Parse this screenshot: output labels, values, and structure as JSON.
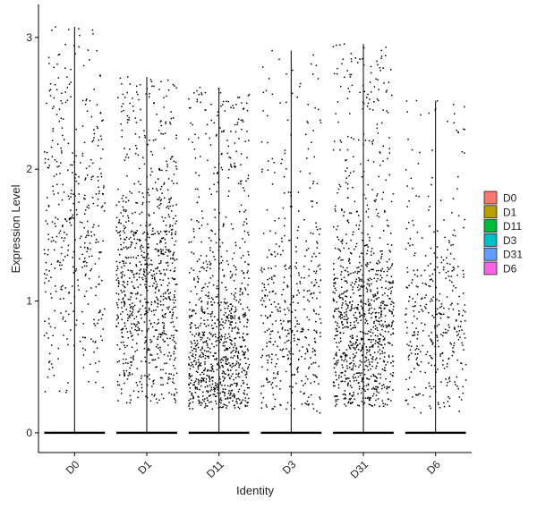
{
  "chart_data": {
    "type": "scatter",
    "subtype": "violin-jitter",
    "title": "",
    "xlabel": "Identity",
    "ylabel": "Expression Level",
    "ylim": [
      -0.15,
      3.25
    ],
    "yticks": [
      0,
      1,
      2,
      3
    ],
    "categories": [
      "D0",
      "D1",
      "D11",
      "D3",
      "D31",
      "D6"
    ],
    "legend": {
      "placement": "right",
      "entries": [
        {
          "name": "D0",
          "color": "#F8766D"
        },
        {
          "name": "D1",
          "color": "#B79F00"
        },
        {
          "name": "D11",
          "color": "#00BA38"
        },
        {
          "name": "D3",
          "color": "#00BFC4"
        },
        {
          "name": "D31",
          "color": "#619CFF"
        },
        {
          "name": "D6",
          "color": "#F564E3"
        }
      ]
    },
    "groups": [
      {
        "category": "D0",
        "max": 3.08,
        "nonzero_points": 420,
        "zero_fraction": "high",
        "center": 1.5,
        "spread": 0.9,
        "min_nonzero": 0.3
      },
      {
        "category": "D1",
        "max": 2.7,
        "nonzero_points": 900,
        "zero_fraction": "high",
        "center": 1.05,
        "spread": 0.7,
        "min_nonzero": 0.22
      },
      {
        "category": "D11",
        "max": 2.62,
        "nonzero_points": 950,
        "zero_fraction": "high",
        "center": 0.55,
        "spread": 0.55,
        "min_nonzero": 0.18
      },
      {
        "category": "D3",
        "max": 2.9,
        "nonzero_points": 460,
        "zero_fraction": "high",
        "center": 0.8,
        "spread": 0.6,
        "min_nonzero": 0.15
      },
      {
        "category": "D31",
        "max": 2.95,
        "nonzero_points": 1000,
        "zero_fraction": "high",
        "center": 0.75,
        "spread": 0.6,
        "min_nonzero": 0.2
      },
      {
        "category": "D6",
        "max": 2.52,
        "nonzero_points": 380,
        "zero_fraction": "high",
        "center": 0.8,
        "spread": 0.55,
        "min_nonzero": 0.15
      }
    ],
    "point_color": "#000000",
    "grid": false
  }
}
